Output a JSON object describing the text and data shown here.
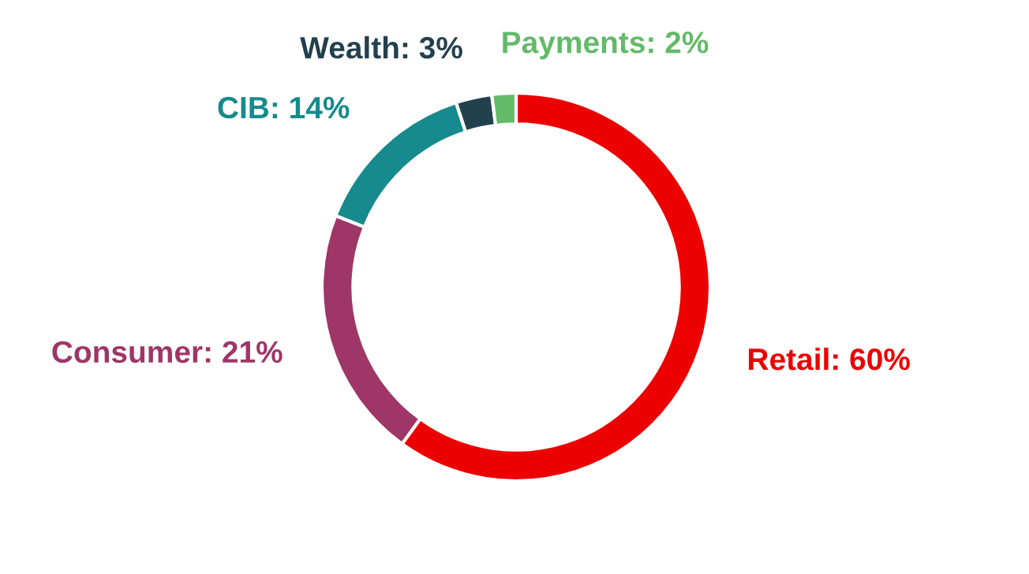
{
  "chart_data": {
    "type": "donut",
    "categories": [
      "Retail",
      "Consumer",
      "CIB",
      "Wealth",
      "Payments"
    ],
    "values": [
      60,
      21,
      14,
      3,
      2
    ],
    "value_labels": [
      "60%",
      "21%",
      "14%",
      "3%",
      "2%"
    ],
    "colors": [
      "#ec0000",
      "#9e3667",
      "#168a8c",
      "#23404d",
      "#63ba68"
    ],
    "legend": false
  }
}
